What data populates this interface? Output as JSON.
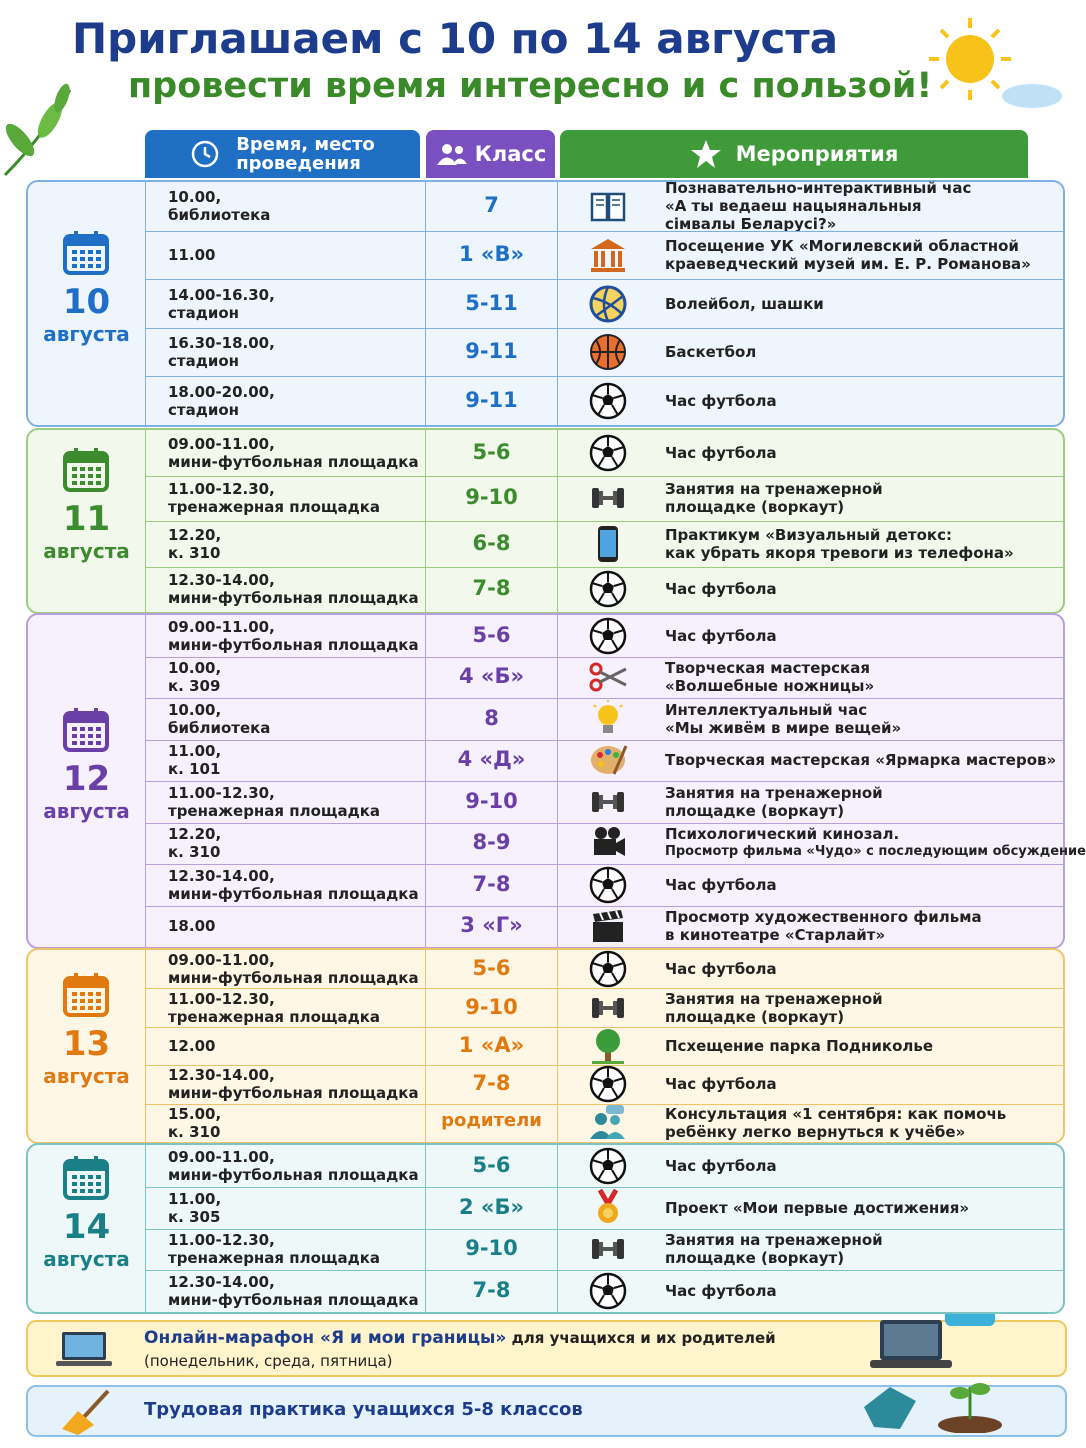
{
  "header": {
    "title": "Приглашаем с 10 по 14 августа",
    "subtitle": "провести время интересно и с пользой!"
  },
  "columns": {
    "time": [
      "Время, место",
      "проведения"
    ],
    "class": "Класс",
    "events": "Мероприятия"
  },
  "schedule": {
    "days": [
      {
        "day": "10",
        "month": "августа",
        "rows": [
          {
            "time": "10.00,",
            "place": "библиотека",
            "class": "7",
            "icon": "book",
            "activity": [
              "Познавательно-интерактивный час",
              "«А ты ведаеш нацыянальныя",
              "сімвалы Беларусі?»"
            ]
          },
          {
            "time": "11.00",
            "class": "1 «В»",
            "icon": "museum",
            "activity": [
              "Посещение УК «Могилевский областной",
              "краеведческий музей им. Е. Р. Романова»"
            ]
          },
          {
            "time": "14.00-16.30,",
            "place": "стадион",
            "class": "5-11",
            "icon": "volleyball",
            "activity": [
              "Волейбол, шашки"
            ]
          },
          {
            "time": "16.30-18.00,",
            "place": "стадион",
            "class": "9-11",
            "icon": "basketball",
            "activity": [
              "Баскетбол"
            ]
          },
          {
            "time": "18.00-20.00,",
            "place": "стадион",
            "class": "9-11",
            "icon": "football",
            "activity": [
              "Час футбола"
            ]
          }
        ]
      },
      {
        "day": "11",
        "month": "августа",
        "rows": [
          {
            "time": "09.00-11.00,",
            "place": "мини-футбольная площадка",
            "class": "5-6",
            "icon": "football",
            "activity": [
              "Час футбола"
            ]
          },
          {
            "time": "11.00-12.30,",
            "place": "тренажерная площадка",
            "class": "9-10",
            "icon": "dumbbell",
            "activity": [
              "Занятия на тренажерной",
              "площадке (воркаут)"
            ]
          },
          {
            "time": "12.20,",
            "place": "к. 310",
            "class": "6-8",
            "icon": "phone",
            "activity": [
              "Практикум «Визуальный детокс:",
              "как убрать якоря тревоги из телефона»"
            ]
          },
          {
            "time": "12.30-14.00,",
            "place": "мини-футбольная площадка",
            "class": "7-8",
            "icon": "football",
            "activity": [
              "Час футбола"
            ]
          }
        ]
      },
      {
        "day": "12",
        "month": "августа",
        "rows": [
          {
            "time": "09.00-11.00,",
            "place": "мини-футбольная площадка",
            "class": "5-6",
            "icon": "football",
            "activity": [
              "Час футбола"
            ]
          },
          {
            "time": "10.00,",
            "place": "к. 309",
            "class": "4 «Б»",
            "icon": "scissors",
            "activity": [
              "Творческая мастерская",
              "«Волшебные ножницы»"
            ]
          },
          {
            "time": "10.00,",
            "place": "библиотека",
            "class": "8",
            "icon": "bulb",
            "activity": [
              "Интеллектуальный час",
              "«Мы живём в мире вещей»"
            ]
          },
          {
            "time": "11.00,",
            "place": "к. 101",
            "class": "4 «Д»",
            "icon": "palette",
            "activity": [
              "Творческая мастерская «Ярмарка мастеров»"
            ]
          },
          {
            "time": "11.00-12.30,",
            "place": "тренажерная площадка",
            "class": "9-10",
            "icon": "dumbbell",
            "activity": [
              "Занятия на тренажерной",
              "площадке (воркаут)"
            ]
          },
          {
            "time": "12.20,",
            "place": "к. 310",
            "class": "8-9",
            "icon": "camera",
            "activity": [
              "Психологический кинозал.",
              "Просмотр фильма «Чудо» с последующим обсуждением"
            ]
          },
          {
            "time": "12.30-14.00,",
            "place": "мини-футбольная площадка",
            "class": "7-8",
            "icon": "football",
            "activity": [
              "Час футбола"
            ]
          },
          {
            "time": "18.00",
            "class": "3 «Г»",
            "icon": "clapper",
            "activity": [
              "Просмотр художественного фильма",
              "в кинотеатре «Старлайт»"
            ]
          }
        ]
      },
      {
        "day": "13",
        "month": "августа",
        "rows": [
          {
            "time": "09.00-11.00,",
            "place": "мини-футбольная площадка",
            "class": "5-6",
            "icon": "football",
            "activity": [
              "Час футбола"
            ]
          },
          {
            "time": "11.00-12.30,",
            "place": "тренажерная площадка",
            "class": "9-10",
            "icon": "dumbbell",
            "activity": [
              "Занятия на тренажерной",
              "площадке (воркаут)"
            ]
          },
          {
            "time": "12.00",
            "class": "1 «А»",
            "icon": "tree",
            "activity": [
              "Псхещение парка Подниколье"
            ]
          },
          {
            "time": "12.30-14.00,",
            "place": "мини-футбольная площадка",
            "class": "7-8",
            "icon": "football",
            "activity": [
              "Час футбола"
            ]
          },
          {
            "time": "15.00,",
            "place": "к. 310",
            "class": "родители",
            "icon": "people",
            "activity": [
              "Консультация «1 сентября: как помочь",
              "ребёнку легко вернуться к учёбе»"
            ]
          }
        ]
      },
      {
        "day": "14",
        "month": "августа",
        "rows": [
          {
            "time": "09.00-11.00,",
            "place": "мини-футбольная площадка",
            "class": "5-6",
            "icon": "football",
            "activity": [
              "Час футбола"
            ]
          },
          {
            "time": "11.00,",
            "place": "к. 305",
            "class": "2 «Б»",
            "icon": "medal",
            "activity": [
              "Проект «Мои первые достижения»"
            ]
          },
          {
            "time": "11.00-12.30,",
            "place": "тренажерная площадка",
            "class": "9-10",
            "icon": "dumbbell",
            "activity": [
              "Занятия на тренажерной",
              "площадке (воркаут)"
            ]
          },
          {
            "time": "12.30-14.00,",
            "place": "мини-футбольная площадка",
            "class": "7-8",
            "icon": "football",
            "activity": [
              "Час футбола"
            ]
          }
        ]
      }
    ]
  },
  "footer": {
    "marathon": {
      "title": "Онлайн-марафон «Я и мои границы»",
      "rest": " для учащихся и их родителей",
      "days": "(понедельник, среда, пятница)"
    },
    "labor": "Трудовая практика учащихся 5-8 классов"
  }
}
